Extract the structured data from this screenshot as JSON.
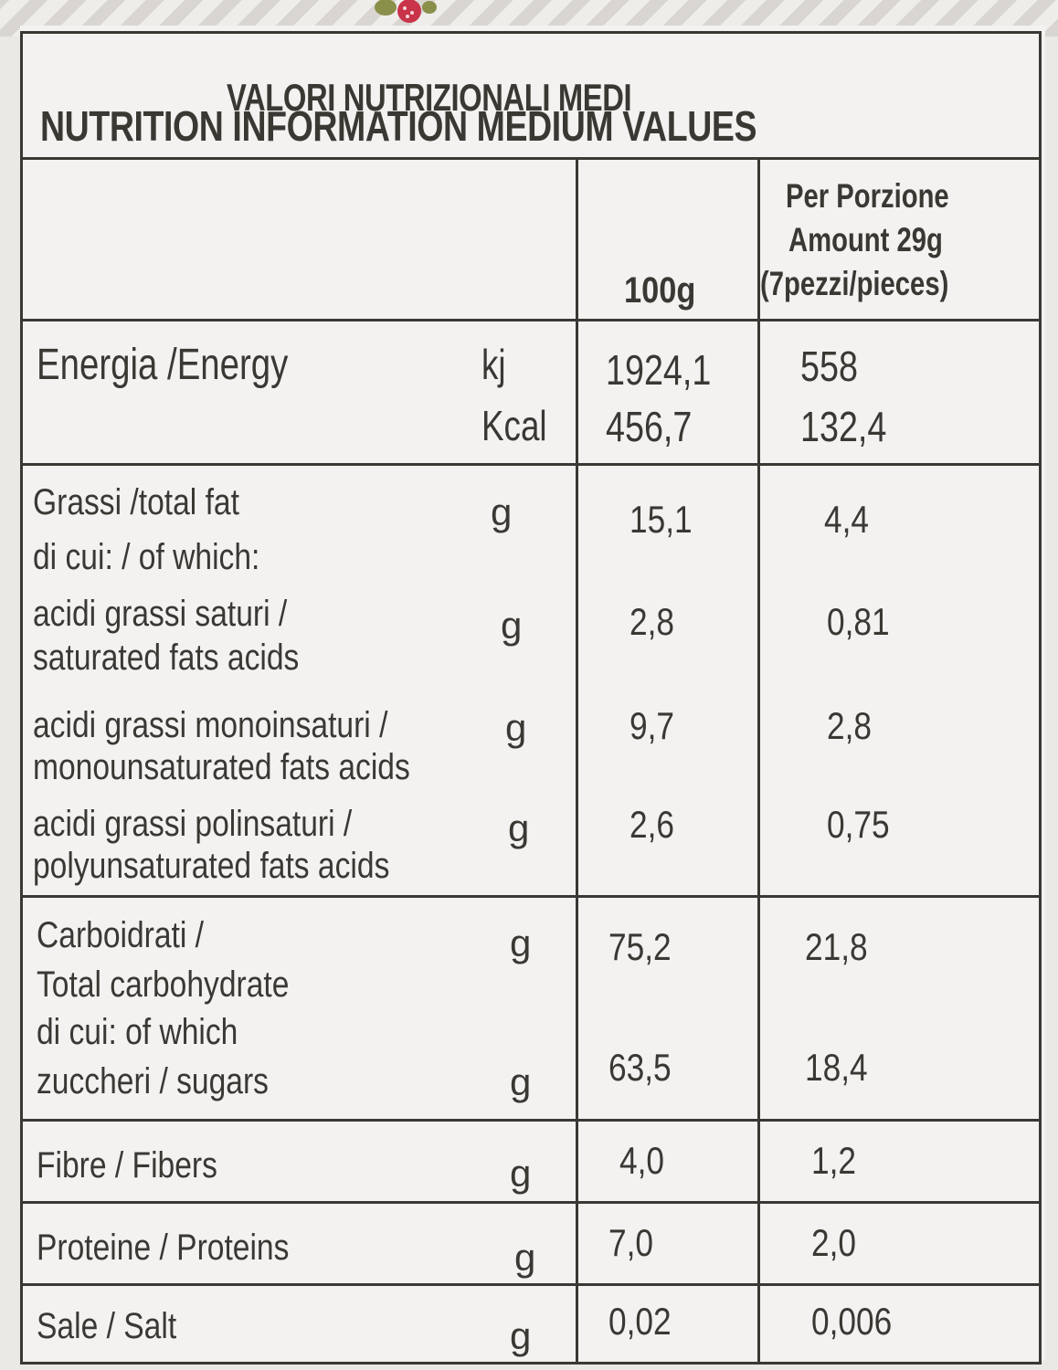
{
  "title": {
    "line1": "VALORI NUTRIZIONALI MEDI",
    "line2": "NUTRITION INFORMATION MEDIUM VALUES"
  },
  "columns": {
    "per100": "100g",
    "portion_line1": "Per Porzione",
    "portion_line2": "Amount 29g",
    "portion_line3": "(7pezzi/pieces)"
  },
  "energy": {
    "label": "Energia /Energy",
    "unit_kj": "kj",
    "unit_kcal": "Kcal",
    "kj_100": "1924,1",
    "kj_portion": "558",
    "kcal_100": "456,7",
    "kcal_portion": "132,4"
  },
  "fat": {
    "label": "Grassi  /total fat",
    "unit": "g",
    "v100": "15,1",
    "portion": "4,4",
    "of_which": "di cui: / of which:",
    "saturated_l1": "acidi grassi saturi /",
    "saturated_l2": "saturated fats acids",
    "saturated_unit": "g",
    "saturated_100": "2,8",
    "saturated_portion": "0,81",
    "mono_l1": "acidi grassi monoinsaturi /",
    "mono_l2": "monounsaturated fats acids",
    "mono_unit": "g",
    "mono_100": "9,7",
    "mono_portion": "2,8",
    "poly_l1": "acidi grassi polinsaturi /",
    "poly_l2": "polyunsaturated fats acids",
    "poly_unit": "g",
    "poly_100": "2,6",
    "poly_portion": "0,75"
  },
  "carbs": {
    "label_l1": "Carboidrati /",
    "label_l2": "Total carbohydrate",
    "unit": "g",
    "v100": "75,2",
    "portion": "21,8",
    "of_which": "di cui: of which",
    "sugars": "zuccheri / sugars",
    "sugars_unit": "g",
    "sugars_100": "63,5",
    "sugars_portion": "18,4"
  },
  "fibre": {
    "label": "Fibre / Fibers",
    "unit": "g",
    "v100": "4,0",
    "portion": "1,2"
  },
  "protein": {
    "label": "Proteine / Proteins",
    "unit": "g",
    "v100": "7,0",
    "portion": "2,0"
  },
  "salt": {
    "label": "Sale / Salt",
    "unit": "g",
    "v100": "0,02",
    "portion": "0,006"
  }
}
